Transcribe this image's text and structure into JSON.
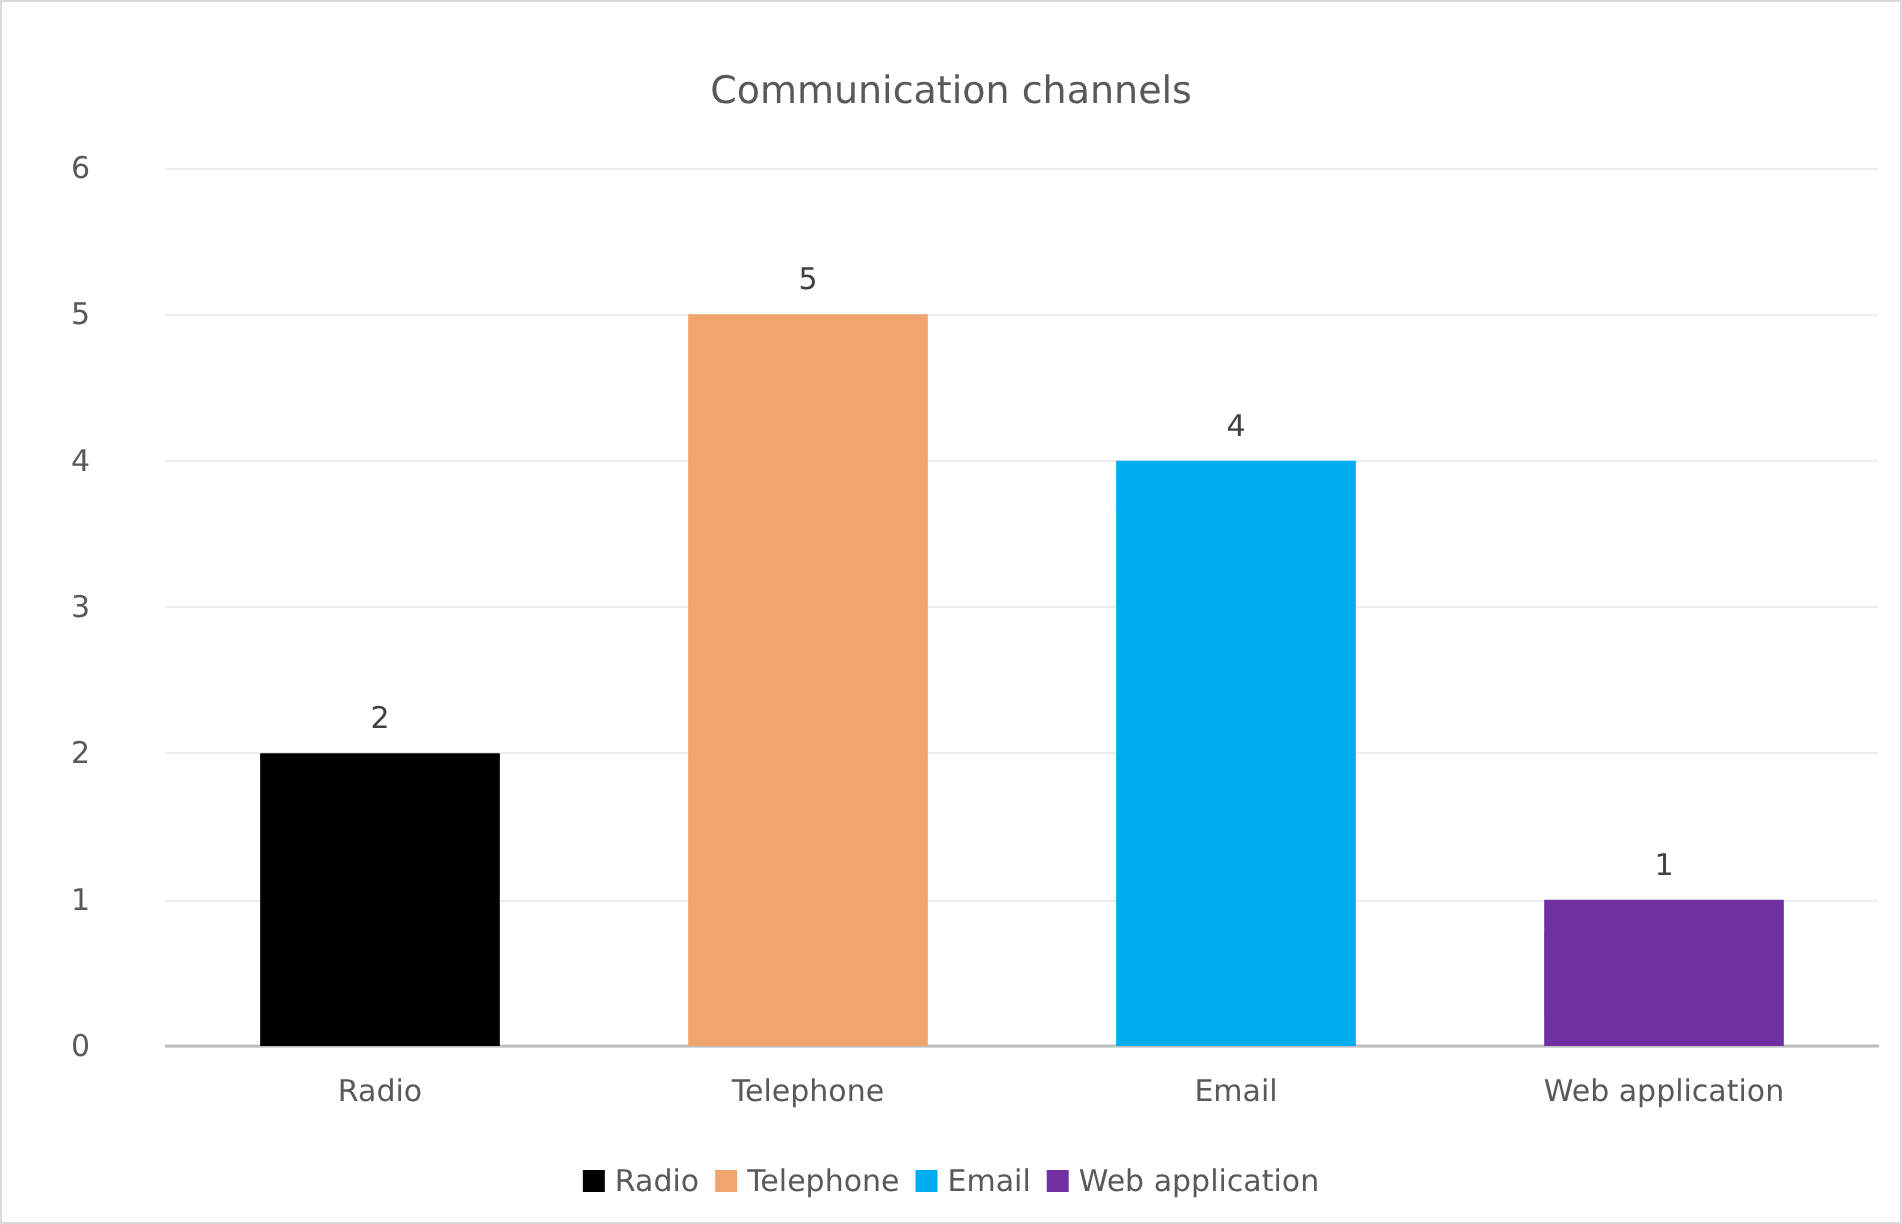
{
  "chart_data": {
    "type": "bar",
    "title": "Communication channels",
    "categories": [
      "Radio",
      "Telephone",
      "Email",
      "Web application"
    ],
    "series": [
      {
        "name": "Radio",
        "color": "#000000",
        "values": [
          2,
          null,
          null,
          null
        ]
      },
      {
        "name": "Telephone",
        "color": "#f0a46e",
        "values": [
          null,
          5,
          null,
          null
        ]
      },
      {
        "name": "Email",
        "color": "#00adef",
        "values": [
          null,
          null,
          4,
          null
        ]
      },
      {
        "name": "Web application",
        "color": "#7030a0",
        "values": [
          null,
          null,
          null,
          1
        ]
      }
    ],
    "ylim": [
      0,
      6
    ],
    "yticks": [
      0,
      1,
      2,
      3,
      4,
      5,
      6
    ],
    "grid": "y",
    "legend": "bottom",
    "data_labels": true
  }
}
